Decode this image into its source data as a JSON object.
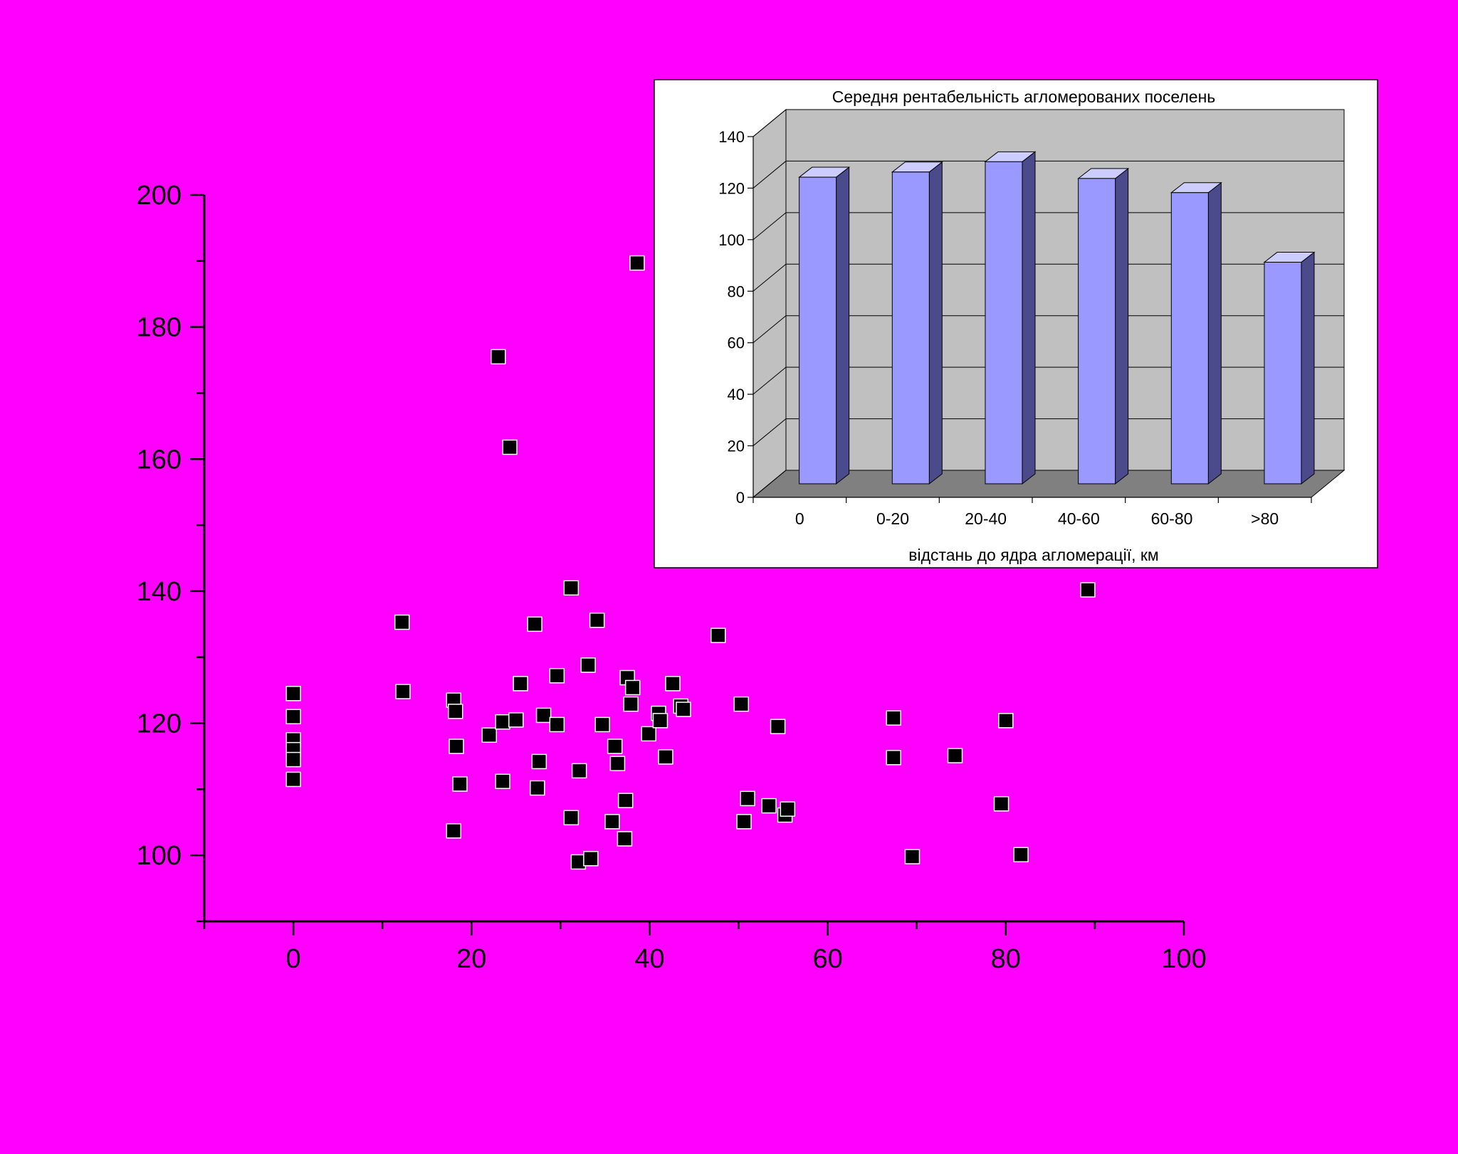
{
  "background_color": "#ff00ff",
  "chart_data": [
    {
      "type": "scatter",
      "title": "",
      "xlabel": "",
      "ylabel": "",
      "xlim": [
        -10,
        100
      ],
      "ylim": [
        90,
        200
      ],
      "xticks": [
        0,
        20,
        40,
        60,
        80,
        100
      ],
      "yticks": [
        100,
        120,
        140,
        160,
        180,
        200
      ],
      "marker_color": "#000000",
      "marker_edge": "#ffffff",
      "grid": false,
      "points": [
        {
          "x": 0,
          "y": 124.5
        },
        {
          "x": 0,
          "y": 121
        },
        {
          "x": 0,
          "y": 117.5
        },
        {
          "x": 0,
          "y": 116
        },
        {
          "x": 0,
          "y": 114.5
        },
        {
          "x": 0,
          "y": 111.5
        },
        {
          "x": 12.2,
          "y": 135.3
        },
        {
          "x": 12.3,
          "y": 124.8
        },
        {
          "x": 18,
          "y": 123.5
        },
        {
          "x": 18.2,
          "y": 121.8
        },
        {
          "x": 18.3,
          "y": 116.5
        },
        {
          "x": 18.7,
          "y": 110.8
        },
        {
          "x": 18,
          "y": 103.7
        },
        {
          "x": 22,
          "y": 118.2
        },
        {
          "x": 23,
          "y": 175.5
        },
        {
          "x": 23.5,
          "y": 120.2
        },
        {
          "x": 23.5,
          "y": 111.2
        },
        {
          "x": 24.3,
          "y": 161.8
        },
        {
          "x": 25,
          "y": 120.5
        },
        {
          "x": 25.5,
          "y": 126
        },
        {
          "x": 27.1,
          "y": 135
        },
        {
          "x": 27.4,
          "y": 110.2
        },
        {
          "x": 27.6,
          "y": 114.2
        },
        {
          "x": 28.1,
          "y": 121.2
        },
        {
          "x": 29.6,
          "y": 127.2
        },
        {
          "x": 29.6,
          "y": 119.8
        },
        {
          "x": 31.2,
          "y": 140.5
        },
        {
          "x": 31.2,
          "y": 105.7
        },
        {
          "x": 32,
          "y": 99
        },
        {
          "x": 32.1,
          "y": 112.8
        },
        {
          "x": 33.1,
          "y": 128.8
        },
        {
          "x": 33.4,
          "y": 99.5
        },
        {
          "x": 34.1,
          "y": 135.6
        },
        {
          "x": 34.7,
          "y": 119.8
        },
        {
          "x": 35.8,
          "y": 105.1
        },
        {
          "x": 36.1,
          "y": 116.5
        },
        {
          "x": 36.4,
          "y": 113.9
        },
        {
          "x": 37.2,
          "y": 102.5
        },
        {
          "x": 37.3,
          "y": 108.3
        },
        {
          "x": 37.5,
          "y": 126.9
        },
        {
          "x": 37.9,
          "y": 122.9
        },
        {
          "x": 38.1,
          "y": 125.4
        },
        {
          "x": 38.6,
          "y": 189.7
        },
        {
          "x": 39.9,
          "y": 118.4
        },
        {
          "x": 41,
          "y": 121.5
        },
        {
          "x": 41.2,
          "y": 120.4
        },
        {
          "x": 41.8,
          "y": 114.9
        },
        {
          "x": 42.6,
          "y": 126
        },
        {
          "x": 43.5,
          "y": 122.6
        },
        {
          "x": 43.8,
          "y": 122.1
        },
        {
          "x": 47.7,
          "y": 133.3
        },
        {
          "x": 50.3,
          "y": 122.9
        },
        {
          "x": 50.6,
          "y": 105.1
        },
        {
          "x": 51,
          "y": 108.6
        },
        {
          "x": 53.4,
          "y": 107.5
        },
        {
          "x": 54.4,
          "y": 119.5
        },
        {
          "x": 55.2,
          "y": 106.1
        },
        {
          "x": 55.5,
          "y": 107
        },
        {
          "x": 67.4,
          "y": 120.8
        },
        {
          "x": 67.4,
          "y": 114.8
        },
        {
          "x": 69.5,
          "y": 99.8
        },
        {
          "x": 74.3,
          "y": 115.1
        },
        {
          "x": 79.5,
          "y": 107.8
        },
        {
          "x": 80,
          "y": 120.4
        },
        {
          "x": 81.7,
          "y": 100.1
        },
        {
          "x": 89.2,
          "y": 140.2
        }
      ]
    },
    {
      "type": "bar",
      "title": "Середня рентабельність агломерованих поселень",
      "xlabel": "відстань до ядра агломерації, км",
      "ylabel": "",
      "categories": [
        "0",
        "0-20",
        "20-40",
        "40-60",
        "60-80",
        ">80"
      ],
      "values": [
        119,
        121,
        125,
        118.5,
        113,
        86
      ],
      "ylim": [
        0,
        140
      ],
      "yticks": [
        0,
        20,
        40,
        60,
        80,
        100,
        120,
        140
      ],
      "bar_front_color": "#9999ff",
      "bar_top_color": "#ccccff",
      "bar_side_color": "#4b4b8c",
      "wall_color": "#c0c0c0",
      "floor_color": "#808080",
      "panel_color": "#ffffff",
      "grid": true
    }
  ]
}
